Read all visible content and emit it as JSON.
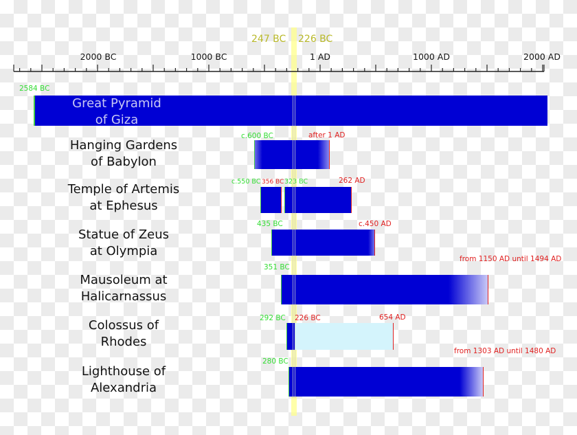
{
  "chart_data": {
    "type": "timeline",
    "title": "Seven Wonders of the Ancient World timeline",
    "xlabel": "",
    "ylabel": "",
    "axis": {
      "range": [
        -2750,
        2050
      ],
      "major_ticks": [
        -2000,
        -1000,
        1,
        1000,
        2000
      ],
      "major_tick_labels": [
        "2000 BC",
        "1000 BC",
        "1 AD",
        "1000 AD",
        "2000 AD"
      ],
      "minor_tick_interval_years": 100
    },
    "markers": [
      {
        "label": "247 BC",
        "year": -247
      },
      {
        "label": "226 BC",
        "year": -226
      }
    ],
    "highlight_band": {
      "from": -247,
      "to": -226,
      "color": "#ffff99"
    },
    "series": [
      {
        "name": "Great Pyramid of Giza",
        "segments": [
          {
            "from": -2584,
            "to": 2010,
            "color": "#0000d4"
          }
        ],
        "start_label": "2584 BC",
        "end_label": ""
      },
      {
        "name": "Hanging Gardens of Babylon",
        "segments": [
          {
            "from": -600,
            "to": 75,
            "color": "#0000d4",
            "fade_start": true,
            "fade_end": true
          }
        ],
        "start_label": "c.600 BC",
        "end_label": "after 1 AD"
      },
      {
        "name": "Temple of Artemis at Ephesus",
        "segments": [
          {
            "from": -550,
            "to": -356,
            "color": "#0000d4"
          },
          {
            "from": -323,
            "to": 262,
            "color": "#0000d4"
          }
        ],
        "start_label": "c.550 BC",
        "mid_labels": [
          "356 BC",
          "323 BC"
        ],
        "end_label": "262 AD"
      },
      {
        "name": "Statue of Zeus at Olympia",
        "segments": [
          {
            "from": -435,
            "to": 450,
            "color": "#0000d4",
            "fade_end": true
          }
        ],
        "start_label": "435 BC",
        "end_label": "c.450 AD"
      },
      {
        "name": "Mausoleum at Halicarnassus",
        "segments": [
          {
            "from": -351,
            "to": 1494,
            "color": "#0000d4",
            "fade_from": 1150
          }
        ],
        "start_label": "351 BC",
        "end_label": "from 1150 AD until 1494 AD"
      },
      {
        "name": "Colossus of Rhodes",
        "segments": [
          {
            "from": -292,
            "to": -226,
            "color": "#0000d4"
          },
          {
            "from": -226,
            "to": 654,
            "color": "#d4f4fc"
          }
        ],
        "start_label": "292 BC",
        "mid_labels": [
          "226 BC"
        ],
        "end_label": "654 AD"
      },
      {
        "name": "Lighthouse of Alexandria",
        "segments": [
          {
            "from": -280,
            "to": 1480,
            "color": "#0000d4",
            "fade_from": 1303
          }
        ],
        "start_label": "280 BC",
        "end_label": "from 1303 AD until 1480 AD"
      }
    ]
  },
  "axis": {
    "labels": [
      "2000 BC",
      "1000 BC",
      "1 AD",
      "1000 AD",
      "2000 AD"
    ]
  },
  "markers": {
    "left": "247 BC",
    "right": "226 BC"
  },
  "rows": [
    {
      "name": "Great Pyramid\nof Giza",
      "start": "2584 BC",
      "end": ""
    },
    {
      "name": "Hanging Gardens\nof Babylon",
      "start": "c.600 BC",
      "end": "after 1 AD"
    },
    {
      "name": "Temple of Artemis\nat Ephesus",
      "start": "c.550 BC",
      "mid1": "356 BC",
      "mid2": "323 BC",
      "end": "262 AD"
    },
    {
      "name": "Statue of Zeus\nat Olympia",
      "start": "435 BC",
      "end": "c.450 AD"
    },
    {
      "name": "Mausoleum at\nHalicarnassus",
      "start": "351 BC",
      "end": "from 1150 AD\nuntil 1494 AD"
    },
    {
      "name": "Colossus of\nRhodes",
      "start": "292 BC",
      "mid1": "226 BC",
      "end": "654 AD"
    },
    {
      "name": "Lighthouse of\nAlexandria",
      "start": "280 BC",
      "end": "from 1303 AD\nuntil 1480 AD"
    }
  ],
  "colors": {
    "bar": "#0000d4",
    "bar_light": "#d4f4fc",
    "start_text": "#33dd33",
    "end_text": "#e02020",
    "marker": "#ffff99",
    "marker_text": "#b8b828"
  }
}
